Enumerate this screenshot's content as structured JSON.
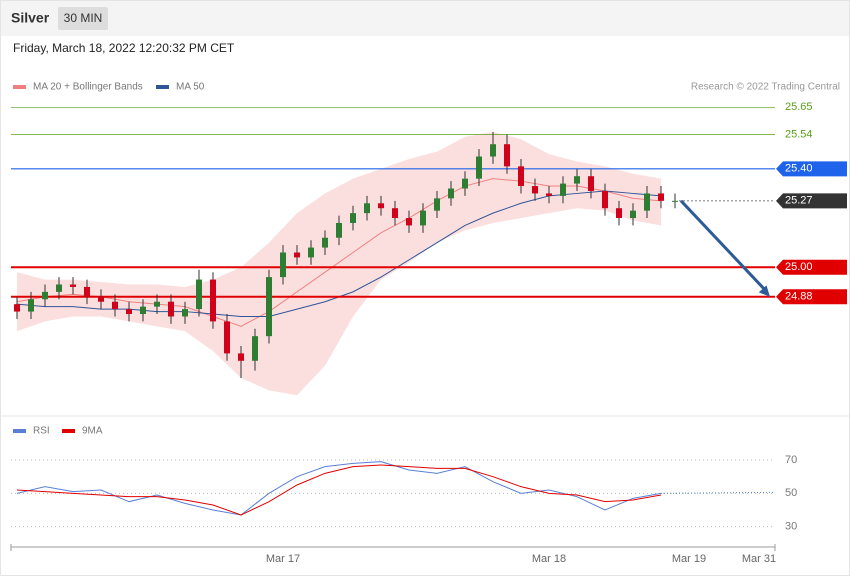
{
  "header": {
    "title": "Silver",
    "interval": "30 MIN",
    "timestamp": "Friday, March 18, 2022 12:20:32 PM CET"
  },
  "chart_data": [
    {
      "type": "candlestick",
      "credit": "Research © 2022 Trading Central",
      "categories": [
        null,
        null,
        null,
        null,
        null,
        null,
        null,
        null,
        null,
        null,
        null,
        null,
        null,
        null,
        null,
        null,
        null,
        null,
        null,
        "Mar 17",
        null,
        null,
        null,
        null,
        null,
        null,
        null,
        null,
        null,
        null,
        null,
        null,
        null,
        null,
        null,
        null,
        null,
        null,
        "Mar 18",
        null,
        null,
        null,
        null,
        null,
        null,
        null,
        null,
        null,
        "Mar 19",
        null,
        null,
        null,
        null,
        "Mar 31"
      ],
      "open": [
        24.85,
        24.82,
        24.87,
        24.9,
        24.93,
        24.92,
        24.88,
        24.86,
        24.83,
        24.81,
        24.84,
        24.86,
        24.8,
        24.83,
        24.95,
        24.78,
        24.65,
        24.62,
        24.72,
        24.96,
        25.06,
        25.04,
        25.08,
        25.12,
        25.18,
        25.22,
        25.26,
        25.24,
        25.2,
        25.17,
        25.23,
        25.28,
        25.32,
        25.36,
        25.45,
        25.5,
        25.41,
        25.33,
        25.3,
        25.29,
        25.34,
        25.37,
        25.31,
        25.24,
        25.2,
        25.23,
        25.3,
        25.27,
        null,
        null,
        null,
        null,
        null,
        null
      ],
      "high": [
        24.88,
        24.9,
        24.93,
        24.96,
        24.96,
        24.95,
        24.91,
        24.89,
        24.86,
        24.87,
        24.89,
        24.89,
        24.86,
        24.99,
        24.98,
        24.81,
        24.68,
        24.75,
        24.99,
        25.09,
        25.09,
        25.11,
        25.15,
        25.21,
        25.25,
        25.29,
        25.29,
        25.27,
        25.23,
        25.26,
        25.31,
        25.35,
        25.39,
        25.48,
        25.55,
        25.54,
        25.44,
        25.36,
        25.33,
        25.37,
        25.4,
        25.4,
        25.34,
        25.27,
        25.26,
        25.33,
        25.33,
        25.3,
        null,
        null,
        null,
        null,
        null,
        null
      ],
      "low": [
        24.79,
        24.79,
        24.84,
        24.87,
        24.89,
        24.85,
        24.83,
        24.8,
        24.78,
        24.78,
        24.81,
        24.77,
        24.77,
        24.8,
        24.75,
        24.62,
        24.55,
        24.58,
        24.69,
        24.93,
        25.01,
        25.01,
        25.05,
        25.09,
        25.15,
        25.19,
        25.21,
        25.17,
        25.14,
        25.14,
        25.2,
        25.25,
        25.29,
        25.33,
        25.42,
        25.38,
        25.3,
        25.27,
        25.26,
        25.26,
        25.31,
        25.28,
        25.21,
        25.17,
        25.17,
        25.2,
        25.24,
        25.24,
        null,
        null,
        null,
        null,
        null,
        null
      ],
      "close": [
        24.82,
        24.87,
        24.9,
        24.93,
        24.92,
        24.88,
        24.86,
        24.83,
        24.81,
        24.84,
        24.86,
        24.8,
        24.83,
        24.95,
        24.78,
        24.65,
        24.62,
        24.72,
        24.96,
        25.06,
        25.04,
        25.08,
        25.12,
        25.18,
        25.22,
        25.26,
        25.24,
        25.2,
        25.17,
        25.23,
        25.28,
        25.32,
        25.36,
        25.45,
        25.5,
        25.41,
        25.33,
        25.3,
        25.29,
        25.34,
        25.37,
        25.31,
        25.24,
        25.2,
        25.23,
        25.3,
        25.27,
        25.27,
        null,
        null,
        null,
        null,
        null,
        null
      ],
      "up_color": "#2e7d32",
      "down_color": "#d0021b",
      "ylim": [
        24.42,
        25.7
      ],
      "yticks": [
        25.65,
        25.54,
        {
          "value": 25.4,
          "label": "25.40"
        },
        25.27,
        {
          "value": 25,
          "label": "25.00"
        },
        24.88
      ],
      "ytick_colors": [
        "#5a9e1a",
        "#5a9e1a",
        "#1e63e9",
        "#333333",
        "#e00000",
        "#e00000"
      ],
      "ytick_boxed": [
        false,
        false,
        true,
        true,
        true,
        true
      ],
      "series": [
        {
          "name": "MA 20 + Bollinger Bands",
          "color": "#f08080",
          "x": [
            0,
            2,
            4,
            6,
            8,
            10,
            12,
            14,
            16,
            18,
            20,
            22,
            24,
            26,
            28,
            30,
            32,
            34,
            36,
            38,
            40,
            42,
            44,
            46
          ],
          "values": [
            24.86,
            24.88,
            24.89,
            24.88,
            24.86,
            24.85,
            24.84,
            24.8,
            24.76,
            24.82,
            24.9,
            24.98,
            25.06,
            25.14,
            25.2,
            25.27,
            25.33,
            25.36,
            25.35,
            25.33,
            25.33,
            25.31,
            25.28,
            25.27
          ],
          "upper": [
            24.98,
            24.95,
            24.95,
            24.94,
            24.93,
            24.93,
            24.92,
            24.95,
            25.0,
            25.1,
            25.22,
            25.3,
            25.36,
            25.4,
            25.44,
            25.47,
            25.53,
            25.55,
            25.52,
            25.46,
            25.43,
            25.41,
            25.38,
            25.36
          ],
          "lower": [
            24.74,
            24.78,
            24.8,
            24.8,
            24.78,
            24.76,
            24.74,
            24.66,
            24.55,
            24.5,
            24.48,
            24.6,
            24.8,
            24.95,
            25.02,
            25.1,
            25.15,
            25.18,
            25.2,
            25.22,
            25.24,
            25.23,
            25.19,
            25.17
          ]
        },
        {
          "name": "MA 50",
          "color": "#2f5597",
          "x": [
            0,
            2,
            4,
            6,
            8,
            10,
            12,
            14,
            16,
            18,
            20,
            22,
            24,
            26,
            28,
            30,
            32,
            34,
            36,
            38,
            40,
            42,
            44,
            46
          ],
          "values": [
            24.85,
            24.84,
            24.84,
            24.83,
            24.83,
            24.82,
            24.82,
            24.81,
            24.8,
            24.8,
            24.83,
            24.86,
            24.9,
            24.96,
            25.03,
            25.1,
            25.17,
            25.22,
            25.26,
            25.29,
            25.3,
            25.31,
            25.3,
            25.29
          ]
        }
      ]
    },
    {
      "type": "line",
      "ylim": [
        22,
        79
      ],
      "yticks": [
        70,
        50,
        30
      ],
      "series": [
        {
          "name": "RSI",
          "color": "#5b7fd6",
          "x": [
            0,
            2,
            4,
            6,
            8,
            10,
            12,
            14,
            16,
            18,
            20,
            22,
            24,
            26,
            28,
            30,
            32,
            34,
            36,
            38,
            40,
            42,
            44,
            46
          ],
          "values": [
            50,
            54,
            51,
            52,
            45,
            49,
            44,
            40,
            37,
            50,
            60,
            66,
            68,
            69,
            64,
            62,
            66,
            57,
            50,
            52,
            48,
            40,
            47,
            50
          ]
        },
        {
          "name": "9MA",
          "color": "#e00000",
          "x": [
            0,
            2,
            4,
            6,
            8,
            10,
            12,
            14,
            16,
            18,
            20,
            22,
            24,
            26,
            28,
            30,
            32,
            34,
            36,
            38,
            40,
            42,
            44,
            46
          ],
          "values": [
            52,
            51,
            50,
            49,
            48,
            48,
            46,
            43,
            37,
            45,
            55,
            62,
            66,
            67,
            66,
            65,
            65,
            60,
            54,
            50,
            49,
            45,
            46,
            49
          ]
        }
      ]
    }
  ]
}
